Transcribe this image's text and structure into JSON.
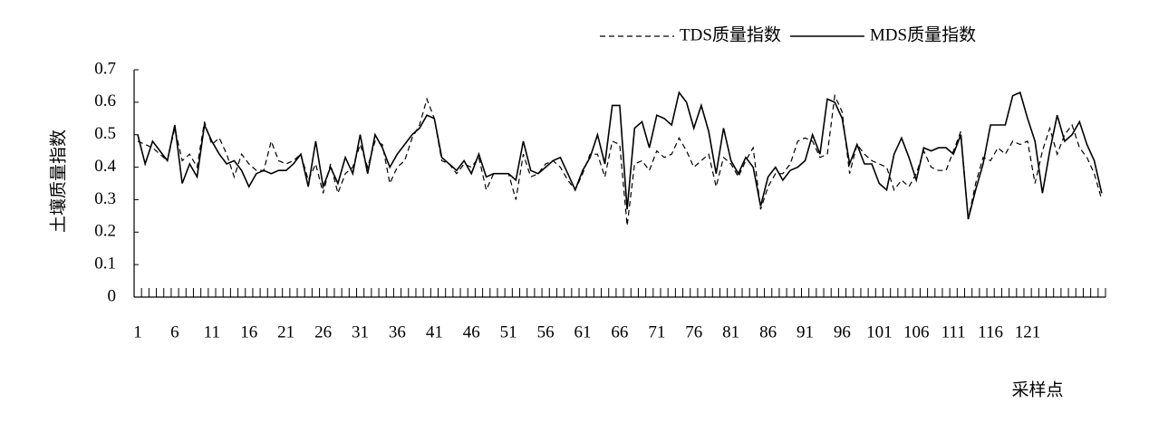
{
  "chart_data": {
    "type": "line",
    "y_label": "土壤质量指数",
    "x_label": "采样点",
    "categories": [
      1,
      null,
      null,
      null,
      null,
      6,
      null,
      null,
      null,
      null,
      11,
      null,
      null,
      null,
      null,
      16,
      null,
      null,
      null,
      null,
      21,
      null,
      null,
      null,
      null,
      26,
      null,
      null,
      null,
      null,
      31,
      null,
      null,
      null,
      null,
      36,
      null,
      null,
      null,
      null,
      41,
      null,
      null,
      null,
      null,
      46,
      null,
      null,
      null,
      null,
      51,
      null,
      null,
      null,
      null,
      56,
      null,
      null,
      null,
      null,
      61,
      null,
      null,
      null,
      null,
      66,
      null,
      null,
      null,
      null,
      71,
      null,
      null,
      null,
      null,
      76,
      null,
      null,
      null,
      null,
      81,
      null,
      null,
      null,
      null,
      86,
      null,
      null,
      null,
      null,
      91,
      null,
      null,
      null,
      null,
      96,
      null,
      null,
      null,
      null,
      101,
      null,
      null,
      null,
      null,
      106,
      null,
      null,
      null,
      null,
      111,
      null,
      null,
      null,
      null,
      116,
      null,
      null,
      null,
      null,
      121,
      null,
      null,
      null,
      null,
      null,
      null,
      null,
      null,
      null,
      null
    ],
    "series": [
      {
        "name": "TDS质量指数",
        "color": "#000000",
        "dash": true,
        "values": [
          0.48,
          0.47,
          0.46,
          0.44,
          0.42,
          0.52,
          0.42,
          0.44,
          0.4,
          0.54,
          0.47,
          0.49,
          0.44,
          0.37,
          0.44,
          0.41,
          0.39,
          0.39,
          0.48,
          0.42,
          0.41,
          0.42,
          0.44,
          0.36,
          0.41,
          0.32,
          0.41,
          0.32,
          0.38,
          0.4,
          0.47,
          0.4,
          0.48,
          0.47,
          0.35,
          0.4,
          0.42,
          0.49,
          0.53,
          0.61,
          0.55,
          0.42,
          0.41,
          0.38,
          0.41,
          0.4,
          0.43,
          0.33,
          0.38,
          0.38,
          0.38,
          0.3,
          0.44,
          0.37,
          0.38,
          0.41,
          0.42,
          0.4,
          0.36,
          0.33,
          0.38,
          0.44,
          0.44,
          0.37,
          0.48,
          0.47,
          0.22,
          0.41,
          0.42,
          0.39,
          0.45,
          0.43,
          0.44,
          0.49,
          0.45,
          0.4,
          0.42,
          0.44,
          0.34,
          0.43,
          0.41,
          0.37,
          0.42,
          0.46,
          0.27,
          0.34,
          0.38,
          0.38,
          0.41,
          0.48,
          0.49,
          0.48,
          0.43,
          0.44,
          0.62,
          0.57,
          0.38,
          0.47,
          0.44,
          0.42,
          0.41,
          0.4,
          0.33,
          0.36,
          0.34,
          0.38,
          0.45,
          0.4,
          0.39,
          0.39,
          0.45,
          0.51,
          0.24,
          0.35,
          0.43,
          0.42,
          0.46,
          0.44,
          0.48,
          0.47,
          0.48,
          0.35,
          0.45,
          0.52,
          0.44,
          0.5,
          0.53,
          0.46,
          0.43,
          0.38,
          0.3
        ]
      },
      {
        "name": "MDS质量指数",
        "color": "#000000",
        "dash": false,
        "values": [
          0.5,
          0.41,
          0.48,
          0.45,
          0.42,
          0.53,
          0.35,
          0.41,
          0.37,
          0.53,
          0.48,
          0.44,
          0.41,
          0.42,
          0.39,
          0.34,
          0.38,
          0.39,
          0.38,
          0.39,
          0.39,
          0.41,
          0.44,
          0.34,
          0.48,
          0.34,
          0.4,
          0.35,
          0.43,
          0.38,
          0.5,
          0.38,
          0.5,
          0.46,
          0.4,
          0.44,
          0.47,
          0.5,
          0.52,
          0.56,
          0.55,
          0.43,
          0.41,
          0.39,
          0.42,
          0.38,
          0.44,
          0.37,
          0.38,
          0.38,
          0.38,
          0.36,
          0.48,
          0.39,
          0.38,
          0.4,
          0.42,
          0.43,
          0.38,
          0.33,
          0.39,
          0.43,
          0.5,
          0.41,
          0.59,
          0.59,
          0.27,
          0.52,
          0.54,
          0.46,
          0.56,
          0.55,
          0.53,
          0.63,
          0.6,
          0.52,
          0.59,
          0.51,
          0.38,
          0.52,
          0.42,
          0.38,
          0.43,
          0.4,
          0.28,
          0.37,
          0.4,
          0.36,
          0.39,
          0.4,
          0.42,
          0.5,
          0.44,
          0.61,
          0.6,
          0.55,
          0.41,
          0.47,
          0.41,
          0.41,
          0.35,
          0.33,
          0.44,
          0.49,
          0.43,
          0.36,
          0.46,
          0.45,
          0.46,
          0.46,
          0.44,
          0.5,
          0.24,
          0.33,
          0.41,
          0.53,
          0.53,
          0.53,
          0.62,
          0.63,
          0.55,
          0.48,
          0.32,
          0.45,
          0.56,
          0.48,
          0.5,
          0.54,
          0.47,
          0.42,
          0.32
        ]
      }
    ],
    "ylim": [
      0,
      0.7
    ],
    "yticks": [
      0,
      0.1,
      0.2,
      0.3,
      0.4,
      0.5,
      0.6,
      0.7
    ],
    "grid": false
  }
}
